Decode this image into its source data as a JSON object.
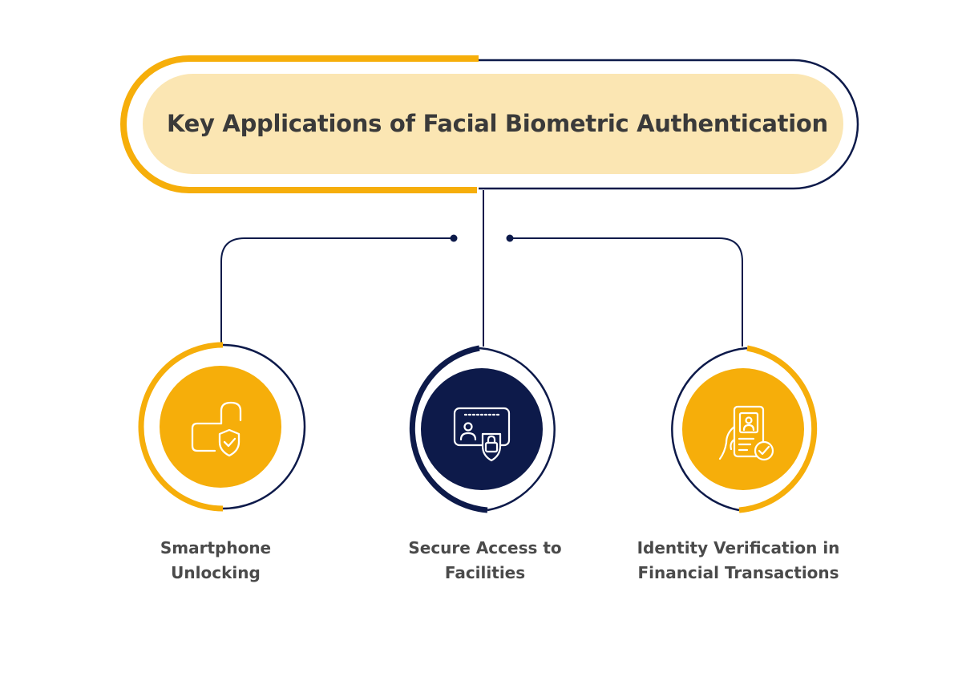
{
  "title": "Key Applications of Facial Biometric Authentication",
  "colors": {
    "accent_yellow": "#F6AE0A",
    "title_fill": "#FBE6B3",
    "navy": "#0D1A4A",
    "text_dark": "#3a3a3a",
    "background": "#FFFFFF"
  },
  "items": [
    {
      "line1": "Smartphone",
      "line2": "Unlocking",
      "icon": "unlocked-padlock-shield-icon",
      "icon_bg": "#F6AE0A"
    },
    {
      "line1": "Secure Access to",
      "line2": "Facilities",
      "icon": "id-card-lock-icon",
      "icon_bg": "#0D1A4A"
    },
    {
      "line1": "Identity Verification in",
      "line2": "Financial Transactions",
      "icon": "phone-id-check-icon",
      "icon_bg": "#F6AE0A"
    }
  ]
}
